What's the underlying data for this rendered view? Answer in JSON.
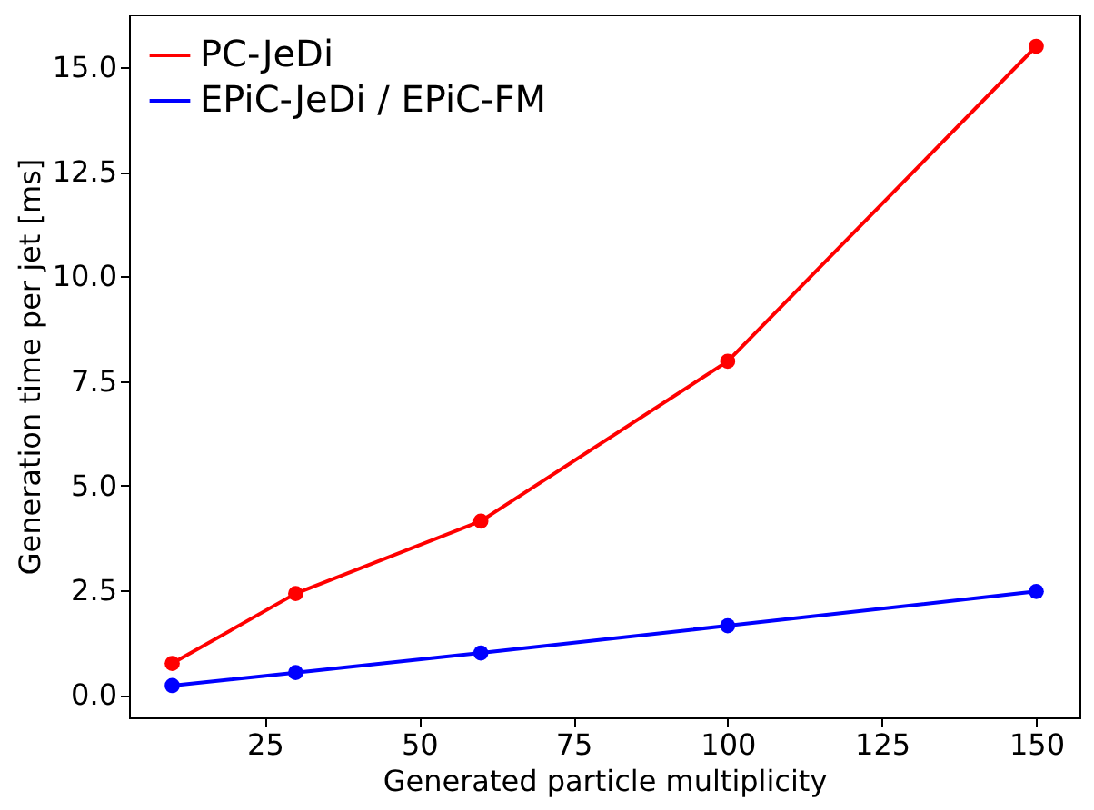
{
  "chart_data": {
    "type": "line",
    "xlabel": "Generated particle multiplicity",
    "ylabel": "Generation time per jet [ms]",
    "x": [
      10,
      30,
      60,
      100,
      150
    ],
    "series": [
      {
        "name": "PC-JeDi",
        "color": "#ff0000",
        "values": [
          0.75,
          2.42,
          4.15,
          7.97,
          15.5
        ]
      },
      {
        "name": "EPiC-JeDi / EPiC-FM",
        "color": "#0000ff",
        "values": [
          0.22,
          0.53,
          1.0,
          1.65,
          2.47
        ]
      }
    ],
    "xlim": [
      3,
      157
    ],
    "ylim": [
      -0.54,
      16.26
    ],
    "xticks": [
      25,
      50,
      75,
      100,
      125,
      150
    ],
    "yticks": [
      {
        "value": 0,
        "label": "0.0"
      },
      {
        "value": 2.5,
        "label": "2.5"
      },
      {
        "value": 5,
        "label": "5.0"
      },
      {
        "value": 7.5,
        "label": "7.5"
      },
      {
        "value": 10,
        "label": "10.0"
      },
      {
        "value": 12.5,
        "label": "12.5"
      },
      {
        "value": 15,
        "label": "15.0"
      }
    ],
    "grid": false,
    "legend": "top left",
    "marker": "circle",
    "line_style": "solid"
  }
}
